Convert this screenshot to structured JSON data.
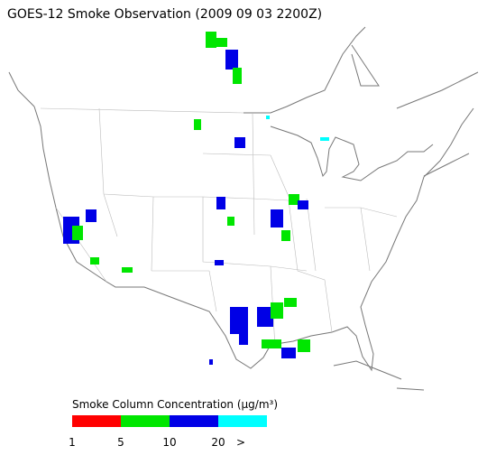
{
  "title": "GOES-12 Smoke Observation (2009 09 03  2200Z)",
  "legend": {
    "title": "Smoke Column Concentration (μg/m³)",
    "colors": [
      "#ff0000",
      "#00e600",
      "#0000e6",
      "#00ffff"
    ],
    "labels": [
      "1",
      "5",
      "10",
      "20",
      ">"
    ]
  }
}
